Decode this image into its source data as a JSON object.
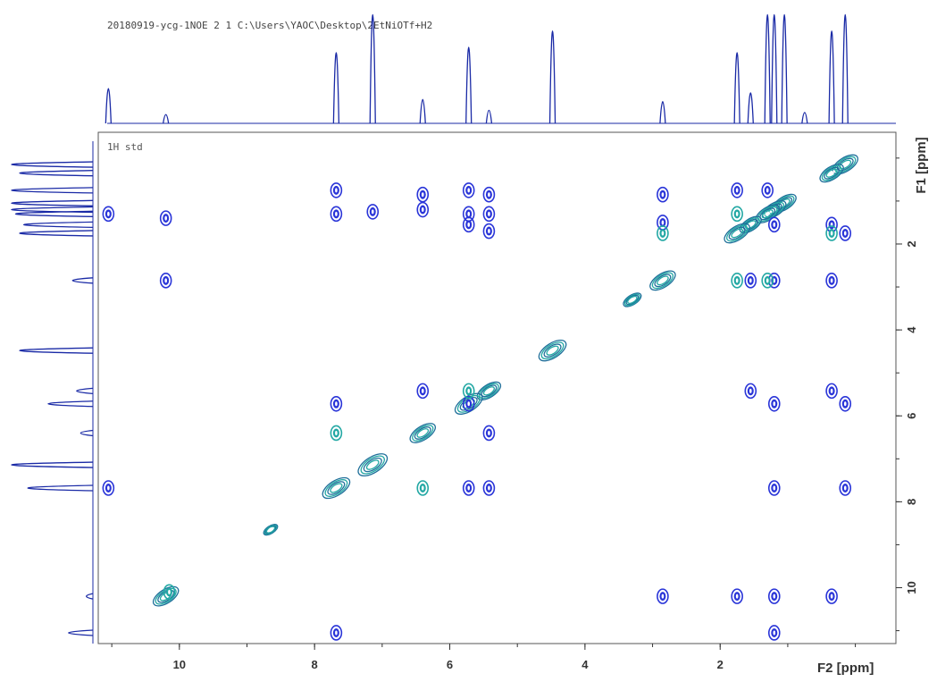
{
  "header": {
    "title": "20180919-ycg-1NOE  2  1  C:\\Users\\YAOC\\Desktop\\2EtNiOTf+H2",
    "panel_label": "1H std"
  },
  "colors": {
    "positive": "#2a35d8",
    "negative": "#23a8a4",
    "projection": "#1a2aa6",
    "axis": "#333333",
    "text": "#444444"
  },
  "chart_data": {
    "type": "heatmap",
    "xlabel": "F2 [ppm]",
    "ylabel": "F1 [ppm]",
    "xlim": [
      11.2,
      -0.6
    ],
    "ylim": [
      -0.6,
      11.3
    ],
    "x_ticks": [
      10,
      8,
      6,
      4,
      2
    ],
    "y_ticks": [
      2,
      4,
      6,
      8,
      10
    ],
    "projection_f2": [
      {
        "ppm": 11.05,
        "h": 0.32
      },
      {
        "ppm": 10.2,
        "h": 0.08
      },
      {
        "ppm": 7.68,
        "h": 0.65
      },
      {
        "ppm": 7.14,
        "h": 1.0
      },
      {
        "ppm": 6.4,
        "h": 0.22
      },
      {
        "ppm": 5.72,
        "h": 0.7
      },
      {
        "ppm": 5.42,
        "h": 0.12
      },
      {
        "ppm": 4.48,
        "h": 0.85
      },
      {
        "ppm": 2.85,
        "h": 0.2
      },
      {
        "ppm": 1.75,
        "h": 0.65
      },
      {
        "ppm": 1.55,
        "h": 0.28
      },
      {
        "ppm": 1.3,
        "h": 1.0
      },
      {
        "ppm": 1.2,
        "h": 1.0
      },
      {
        "ppm": 1.05,
        "h": 1.0
      },
      {
        "ppm": 0.75,
        "h": 0.1
      },
      {
        "ppm": 0.35,
        "h": 0.85
      },
      {
        "ppm": 0.15,
        "h": 1.0
      }
    ],
    "projection_f1": [
      {
        "ppm": 0.15,
        "h": 1.0
      },
      {
        "ppm": 0.35,
        "h": 0.9
      },
      {
        "ppm": 0.75,
        "h": 1.0
      },
      {
        "ppm": 1.05,
        "h": 1.0
      },
      {
        "ppm": 1.2,
        "h": 1.0
      },
      {
        "ppm": 1.3,
        "h": 0.95
      },
      {
        "ppm": 1.55,
        "h": 0.85
      },
      {
        "ppm": 1.75,
        "h": 0.9
      },
      {
        "ppm": 2.85,
        "h": 0.25
      },
      {
        "ppm": 4.48,
        "h": 0.9
      },
      {
        "ppm": 5.42,
        "h": 0.2
      },
      {
        "ppm": 5.72,
        "h": 0.55
      },
      {
        "ppm": 6.4,
        "h": 0.15
      },
      {
        "ppm": 7.14,
        "h": 1.0
      },
      {
        "ppm": 7.68,
        "h": 0.8
      },
      {
        "ppm": 10.2,
        "h": 0.08
      },
      {
        "ppm": 11.05,
        "h": 0.3
      }
    ],
    "diagonal_peaks": [
      {
        "ppm": 0.15,
        "r": 1.0
      },
      {
        "ppm": 0.35,
        "r": 0.9
      },
      {
        "ppm": 1.05,
        "r": 0.9
      },
      {
        "ppm": 1.2,
        "r": 0.9
      },
      {
        "ppm": 1.3,
        "r": 0.9
      },
      {
        "ppm": 1.55,
        "r": 0.8
      },
      {
        "ppm": 1.75,
        "r": 1.0
      },
      {
        "ppm": 2.85,
        "r": 1.0
      },
      {
        "ppm": 3.3,
        "r": 0.6
      },
      {
        "ppm": 4.48,
        "r": 1.1
      },
      {
        "ppm": 5.42,
        "r": 0.9
      },
      {
        "ppm": 5.72,
        "r": 1.1
      },
      {
        "ppm": 6.4,
        "r": 1.0
      },
      {
        "ppm": 7.14,
        "r": 1.2
      },
      {
        "ppm": 7.68,
        "r": 1.1
      },
      {
        "ppm": 8.65,
        "r": 0.4
      },
      {
        "ppm": 10.2,
        "r": 1.0
      }
    ],
    "cross_peaks_positive": [
      {
        "x": 7.68,
        "y": 0.75
      },
      {
        "x": 5.72,
        "y": 0.75
      },
      {
        "x": 5.42,
        "y": 0.85
      },
      {
        "x": 6.4,
        "y": 0.85
      },
      {
        "x": 11.05,
        "y": 1.3
      },
      {
        "x": 10.2,
        "y": 1.4
      },
      {
        "x": 7.68,
        "y": 1.3
      },
      {
        "x": 7.14,
        "y": 1.25
      },
      {
        "x": 5.72,
        "y": 1.3
      },
      {
        "x": 5.72,
        "y": 1.55
      },
      {
        "x": 5.42,
        "y": 1.3
      },
      {
        "x": 5.42,
        "y": 1.7
      },
      {
        "x": 6.4,
        "y": 1.2
      },
      {
        "x": 10.2,
        "y": 2.85
      },
      {
        "x": 1.55,
        "y": 2.85
      },
      {
        "x": 1.2,
        "y": 2.85
      },
      {
        "x": 0.35,
        "y": 2.85
      },
      {
        "x": 2.85,
        "y": 0.85
      },
      {
        "x": 2.85,
        "y": 1.5
      },
      {
        "x": 1.75,
        "y": 0.75
      },
      {
        "x": 1.3,
        "y": 0.75
      },
      {
        "x": 0.15,
        "y": 1.75
      },
      {
        "x": 0.35,
        "y": 1.55
      },
      {
        "x": 1.2,
        "y": 1.55
      },
      {
        "x": 7.68,
        "y": 5.72
      },
      {
        "x": 6.4,
        "y": 5.42
      },
      {
        "x": 5.72,
        "y": 5.72
      },
      {
        "x": 5.42,
        "y": 6.4
      },
      {
        "x": 1.55,
        "y": 5.42
      },
      {
        "x": 1.2,
        "y": 5.72
      },
      {
        "x": 0.35,
        "y": 5.42
      },
      {
        "x": 0.15,
        "y": 5.72
      },
      {
        "x": 11.05,
        "y": 7.68
      },
      {
        "x": 5.72,
        "y": 7.68
      },
      {
        "x": 5.42,
        "y": 7.68
      },
      {
        "x": 1.2,
        "y": 7.68
      },
      {
        "x": 0.15,
        "y": 7.68
      },
      {
        "x": 2.85,
        "y": 10.2
      },
      {
        "x": 1.75,
        "y": 10.2
      },
      {
        "x": 1.2,
        "y": 10.2
      },
      {
        "x": 0.35,
        "y": 10.2
      },
      {
        "x": 7.68,
        "y": 11.05
      },
      {
        "x": 1.2,
        "y": 11.05
      }
    ],
    "cross_peaks_negative": [
      {
        "x": 7.68,
        "y": 6.4
      },
      {
        "x": 6.4,
        "y": 7.68
      },
      {
        "x": 5.72,
        "y": 5.42
      },
      {
        "x": 1.75,
        "y": 2.85
      },
      {
        "x": 1.3,
        "y": 2.85
      },
      {
        "x": 2.85,
        "y": 1.75
      },
      {
        "x": 0.35,
        "y": 1.75
      },
      {
        "x": 1.75,
        "y": 1.3
      },
      {
        "x": 10.15,
        "y": 10.1
      }
    ]
  }
}
